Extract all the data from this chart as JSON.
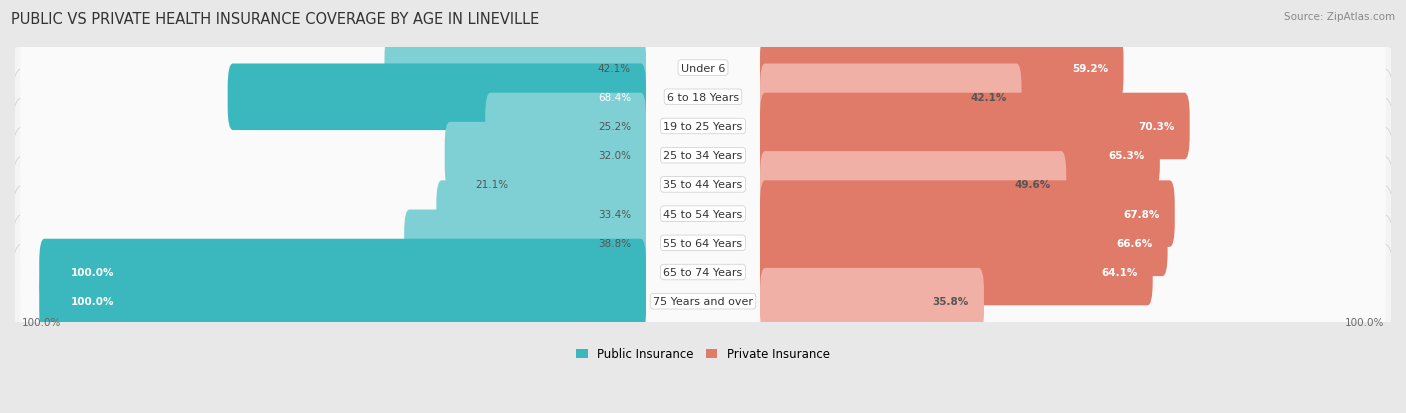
{
  "title": "PUBLIC VS PRIVATE HEALTH INSURANCE COVERAGE BY AGE IN LINEVILLE",
  "source": "Source: ZipAtlas.com",
  "categories": [
    "Under 6",
    "6 to 18 Years",
    "19 to 25 Years",
    "25 to 34 Years",
    "35 to 44 Years",
    "45 to 54 Years",
    "55 to 64 Years",
    "65 to 74 Years",
    "75 Years and over"
  ],
  "public_values": [
    42.1,
    68.4,
    25.2,
    32.0,
    21.1,
    33.4,
    38.8,
    100.0,
    100.0
  ],
  "private_values": [
    59.2,
    42.1,
    70.3,
    65.3,
    49.6,
    67.8,
    66.6,
    64.1,
    35.8
  ],
  "public_color_strong": "#3bb8be",
  "public_color_light": "#7fd0d4",
  "private_color_strong": "#e07b6a",
  "private_color_light": "#f0b0a5",
  "row_bg_color": "#efefef",
  "row_inner_color": "#fafafa",
  "title_fontsize": 10.5,
  "label_fontsize": 8,
  "value_fontsize": 7.5,
  "legend_fontsize": 8.5,
  "source_fontsize": 7.5,
  "public_strong_threshold": 60,
  "private_strong_threshold": 55
}
